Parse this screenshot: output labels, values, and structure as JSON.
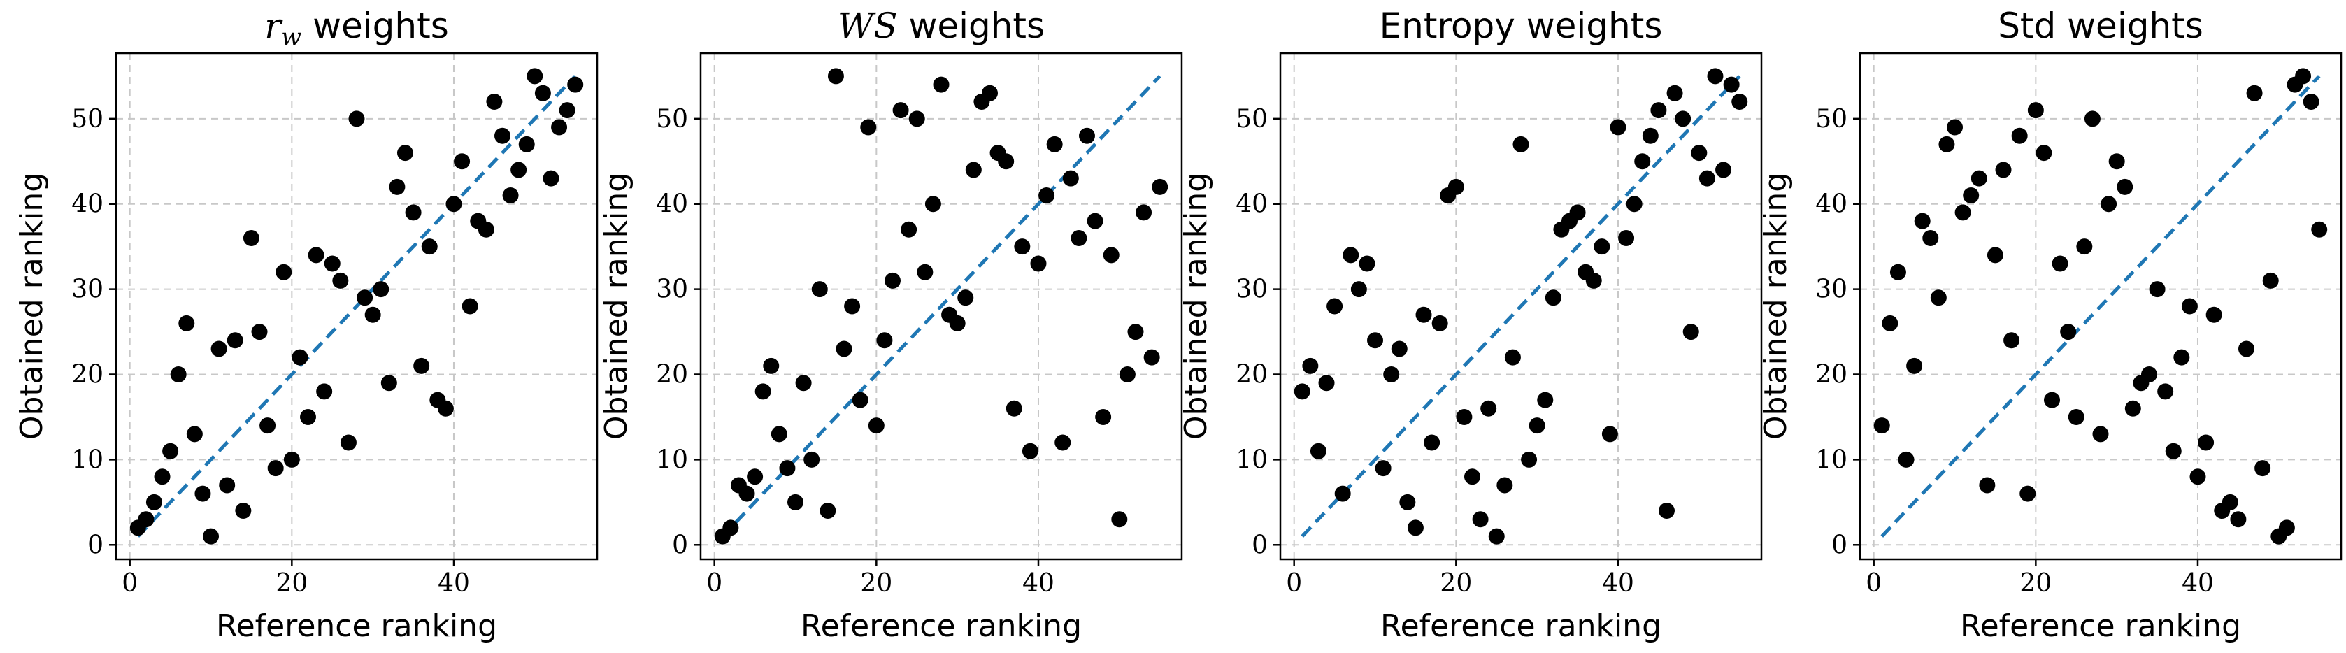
{
  "chart_data": [
    {
      "type": "scatter",
      "title_math": "r",
      "title_math_sub": "w",
      "title": " weights",
      "xlabel": "Reference ranking",
      "ylabel": "Obtained ranking",
      "xlim": [
        -1.7,
        57.7
      ],
      "ylim": [
        -1.7,
        57.7
      ],
      "xticks": [
        0,
        20,
        40
      ],
      "yticks": [
        0,
        10,
        20,
        30,
        40,
        50
      ],
      "grid": true,
      "reference_line": {
        "x": [
          1,
          55
        ],
        "y": [
          1,
          55
        ],
        "color": "#1f77b4",
        "style": "dashed"
      },
      "points": [
        [
          1,
          2
        ],
        [
          2,
          3
        ],
        [
          3,
          5
        ],
        [
          4,
          8
        ],
        [
          5,
          11
        ],
        [
          6,
          20
        ],
        [
          7,
          26
        ],
        [
          8,
          13
        ],
        [
          9,
          6
        ],
        [
          10,
          1
        ],
        [
          11,
          23
        ],
        [
          12,
          7
        ],
        [
          13,
          24
        ],
        [
          14,
          4
        ],
        [
          15,
          36
        ],
        [
          16,
          25
        ],
        [
          17,
          14
        ],
        [
          18,
          9
        ],
        [
          19,
          32
        ],
        [
          20,
          10
        ],
        [
          21,
          22
        ],
        [
          22,
          15
        ],
        [
          23,
          34
        ],
        [
          24,
          18
        ],
        [
          25,
          33
        ],
        [
          26,
          31
        ],
        [
          27,
          12
        ],
        [
          28,
          50
        ],
        [
          29,
          29
        ],
        [
          30,
          27
        ],
        [
          31,
          30
        ],
        [
          32,
          19
        ],
        [
          33,
          42
        ],
        [
          34,
          46
        ],
        [
          35,
          39
        ],
        [
          36,
          21
        ],
        [
          37,
          35
        ],
        [
          38,
          17
        ],
        [
          39,
          16
        ],
        [
          40,
          40
        ],
        [
          41,
          45
        ],
        [
          42,
          28
        ],
        [
          43,
          38
        ],
        [
          44,
          37
        ],
        [
          45,
          52
        ],
        [
          46,
          48
        ],
        [
          47,
          41
        ],
        [
          48,
          44
        ],
        [
          49,
          47
        ],
        [
          50,
          55
        ],
        [
          51,
          53
        ],
        [
          52,
          43
        ],
        [
          53,
          49
        ],
        [
          54,
          51
        ],
        [
          55,
          54
        ]
      ]
    },
    {
      "type": "scatter",
      "title_math": "WS",
      "title": " weights",
      "xlabel": "Reference ranking",
      "ylabel": "Obtained ranking",
      "xlim": [
        -1.7,
        57.7
      ],
      "ylim": [
        -1.7,
        57.7
      ],
      "xticks": [
        0,
        20,
        40
      ],
      "yticks": [
        0,
        10,
        20,
        30,
        40,
        50
      ],
      "grid": true,
      "reference_line": {
        "x": [
          1,
          55
        ],
        "y": [
          1,
          55
        ],
        "color": "#1f77b4",
        "style": "dashed"
      },
      "points": [
        [
          1,
          1
        ],
        [
          2,
          2
        ],
        [
          3,
          7
        ],
        [
          4,
          6
        ],
        [
          5,
          8
        ],
        [
          6,
          18
        ],
        [
          7,
          21
        ],
        [
          8,
          13
        ],
        [
          9,
          9
        ],
        [
          10,
          5
        ],
        [
          11,
          19
        ],
        [
          12,
          10
        ],
        [
          13,
          30
        ],
        [
          14,
          4
        ],
        [
          15,
          55
        ],
        [
          16,
          23
        ],
        [
          17,
          28
        ],
        [
          18,
          17
        ],
        [
          19,
          49
        ],
        [
          20,
          14
        ],
        [
          21,
          24
        ],
        [
          22,
          31
        ],
        [
          23,
          51
        ],
        [
          24,
          37
        ],
        [
          25,
          50
        ],
        [
          26,
          32
        ],
        [
          27,
          40
        ],
        [
          28,
          54
        ],
        [
          29,
          27
        ],
        [
          30,
          26
        ],
        [
          31,
          29
        ],
        [
          32,
          44
        ],
        [
          33,
          52
        ],
        [
          34,
          53
        ],
        [
          35,
          46
        ],
        [
          36,
          45
        ],
        [
          37,
          16
        ],
        [
          38,
          35
        ],
        [
          39,
          11
        ],
        [
          40,
          33
        ],
        [
          41,
          41
        ],
        [
          42,
          47
        ],
        [
          43,
          12
        ],
        [
          44,
          43
        ],
        [
          45,
          36
        ],
        [
          46,
          48
        ],
        [
          47,
          38
        ],
        [
          48,
          15
        ],
        [
          49,
          34
        ],
        [
          50,
          3
        ],
        [
          51,
          20
        ],
        [
          52,
          25
        ],
        [
          53,
          39
        ],
        [
          54,
          22
        ],
        [
          55,
          42
        ]
      ]
    },
    {
      "type": "scatter",
      "title": "Entropy weights",
      "xlabel": "Reference ranking",
      "ylabel": "Obtained ranking",
      "xlim": [
        -1.7,
        57.7
      ],
      "ylim": [
        -1.7,
        57.7
      ],
      "xticks": [
        0,
        20,
        40
      ],
      "yticks": [
        0,
        10,
        20,
        30,
        40,
        50
      ],
      "grid": true,
      "reference_line": {
        "x": [
          1,
          55
        ],
        "y": [
          1,
          55
        ],
        "color": "#1f77b4",
        "style": "dashed"
      },
      "points": [
        [
          1,
          18
        ],
        [
          2,
          21
        ],
        [
          3,
          11
        ],
        [
          4,
          19
        ],
        [
          5,
          28
        ],
        [
          6,
          6
        ],
        [
          7,
          34
        ],
        [
          8,
          30
        ],
        [
          9,
          33
        ],
        [
          10,
          24
        ],
        [
          11,
          9
        ],
        [
          12,
          20
        ],
        [
          13,
          23
        ],
        [
          14,
          5
        ],
        [
          15,
          2
        ],
        [
          16,
          27
        ],
        [
          17,
          12
        ],
        [
          18,
          26
        ],
        [
          19,
          41
        ],
        [
          20,
          42
        ],
        [
          21,
          15
        ],
        [
          22,
          8
        ],
        [
          23,
          3
        ],
        [
          24,
          16
        ],
        [
          25,
          1
        ],
        [
          26,
          7
        ],
        [
          27,
          22
        ],
        [
          28,
          47
        ],
        [
          29,
          10
        ],
        [
          30,
          14
        ],
        [
          31,
          17
        ],
        [
          32,
          29
        ],
        [
          33,
          37
        ],
        [
          34,
          38
        ],
        [
          35,
          39
        ],
        [
          36,
          32
        ],
        [
          37,
          31
        ],
        [
          38,
          35
        ],
        [
          39,
          13
        ],
        [
          40,
          49
        ],
        [
          41,
          36
        ],
        [
          42,
          40
        ],
        [
          43,
          45
        ],
        [
          44,
          48
        ],
        [
          45,
          51
        ],
        [
          46,
          4
        ],
        [
          47,
          53
        ],
        [
          48,
          50
        ],
        [
          49,
          25
        ],
        [
          50,
          46
        ],
        [
          51,
          43
        ],
        [
          52,
          55
        ],
        [
          53,
          44
        ],
        [
          54,
          54
        ],
        [
          55,
          52
        ]
      ]
    },
    {
      "type": "scatter",
      "title": "Std weights",
      "xlabel": "Reference ranking",
      "ylabel": "Obtained ranking",
      "xlim": [
        -1.7,
        57.7
      ],
      "ylim": [
        -1.7,
        57.7
      ],
      "xticks": [
        0,
        20,
        40
      ],
      "yticks": [
        0,
        10,
        20,
        30,
        40,
        50
      ],
      "grid": true,
      "reference_line": {
        "x": [
          1,
          55
        ],
        "y": [
          1,
          55
        ],
        "color": "#1f77b4",
        "style": "dashed"
      },
      "points": [
        [
          1,
          14
        ],
        [
          2,
          26
        ],
        [
          3,
          32
        ],
        [
          4,
          10
        ],
        [
          5,
          21
        ],
        [
          6,
          38
        ],
        [
          7,
          36
        ],
        [
          8,
          29
        ],
        [
          9,
          47
        ],
        [
          10,
          49
        ],
        [
          11,
          39
        ],
        [
          12,
          41
        ],
        [
          13,
          43
        ],
        [
          14,
          7
        ],
        [
          15,
          34
        ],
        [
          16,
          44
        ],
        [
          17,
          24
        ],
        [
          18,
          48
        ],
        [
          19,
          6
        ],
        [
          20,
          51
        ],
        [
          21,
          46
        ],
        [
          22,
          17
        ],
        [
          23,
          33
        ],
        [
          24,
          25
        ],
        [
          25,
          15
        ],
        [
          26,
          35
        ],
        [
          27,
          50
        ],
        [
          28,
          13
        ],
        [
          29,
          40
        ],
        [
          30,
          45
        ],
        [
          31,
          42
        ],
        [
          32,
          16
        ],
        [
          33,
          19
        ],
        [
          34,
          20
        ],
        [
          35,
          30
        ],
        [
          36,
          18
        ],
        [
          37,
          11
        ],
        [
          38,
          22
        ],
        [
          39,
          28
        ],
        [
          40,
          8
        ],
        [
          41,
          12
        ],
        [
          42,
          27
        ],
        [
          43,
          4
        ],
        [
          44,
          5
        ],
        [
          45,
          3
        ],
        [
          46,
          23
        ],
        [
          47,
          53
        ],
        [
          48,
          9
        ],
        [
          49,
          31
        ],
        [
          50,
          1
        ],
        [
          51,
          2
        ],
        [
          52,
          54
        ],
        [
          53,
          55
        ],
        [
          54,
          52
        ],
        [
          55,
          37
        ]
      ]
    }
  ]
}
